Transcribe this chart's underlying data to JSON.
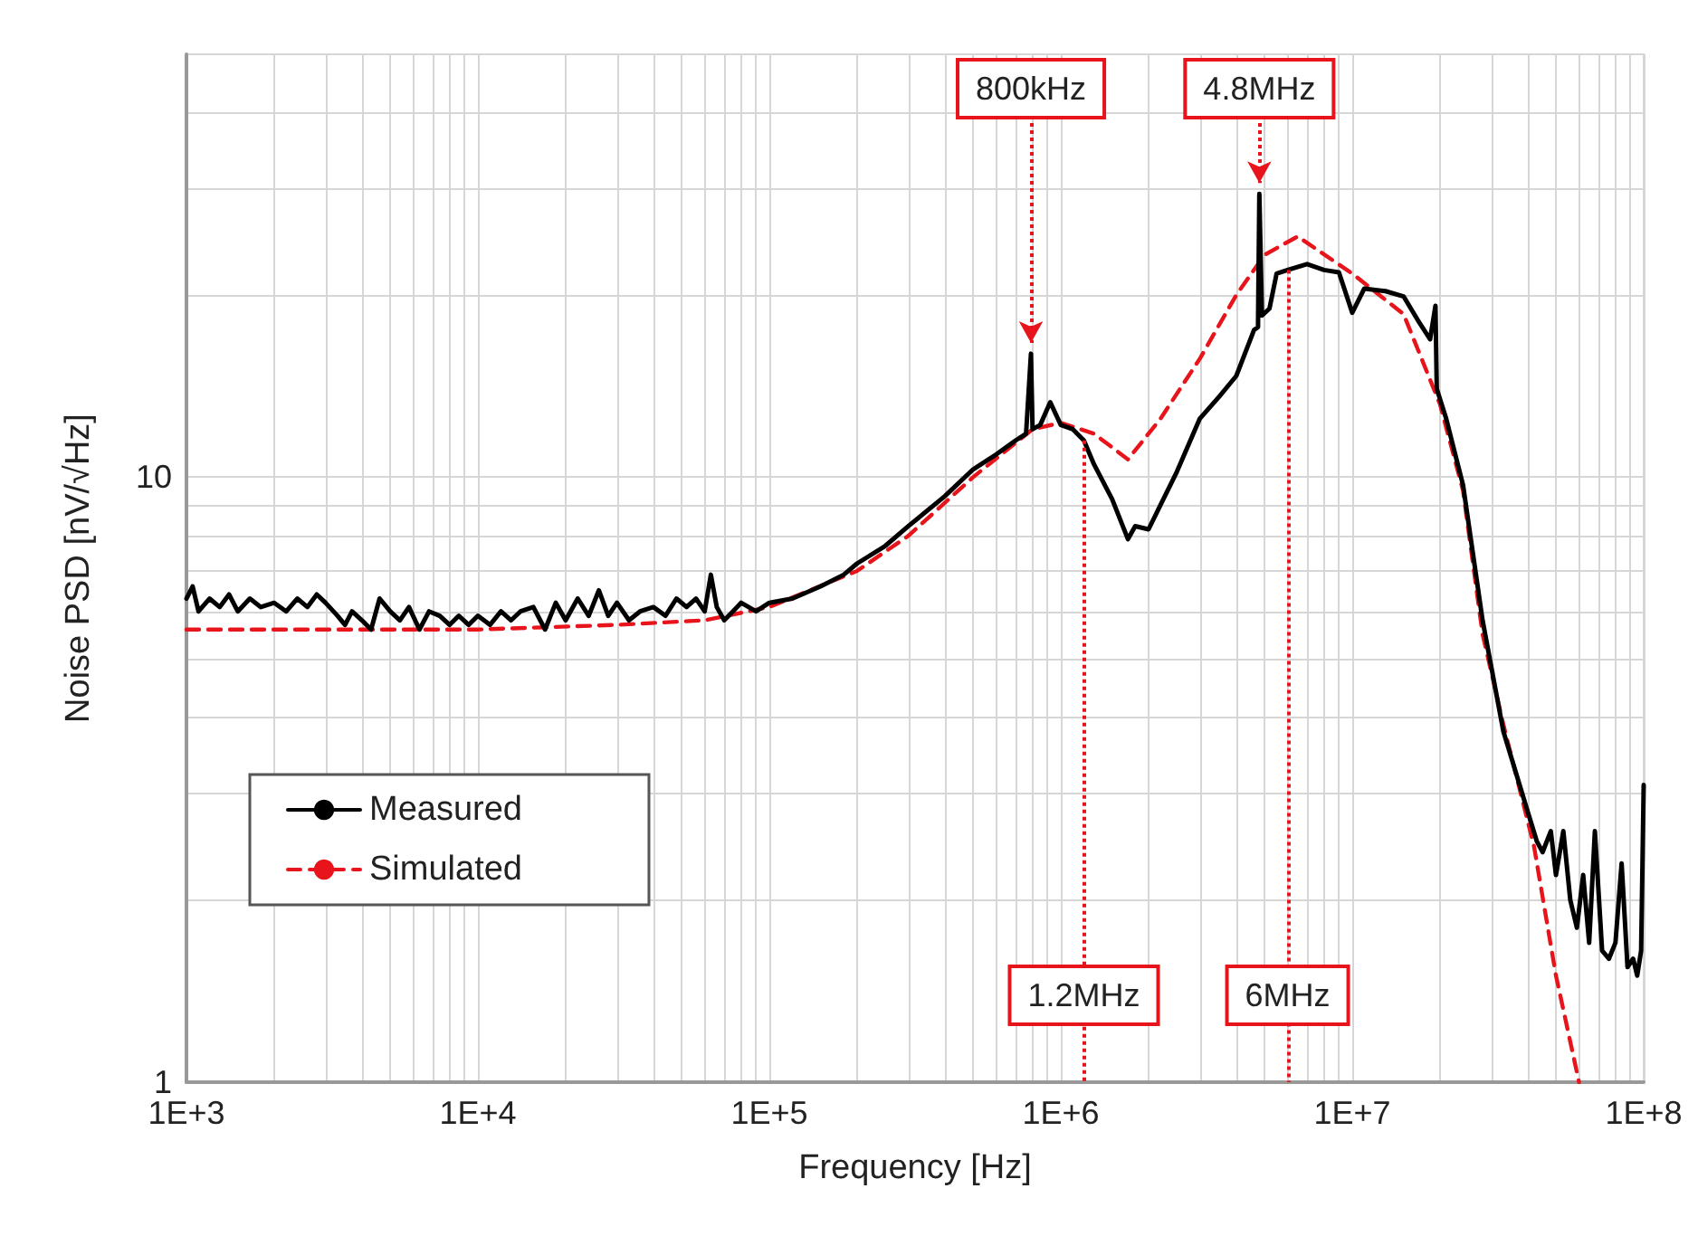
{
  "chart_data": {
    "type": "line",
    "xlabel": "Frequency [Hz]",
    "ylabel": "Noise PSD [nV/√Hz]",
    "log": "xy",
    "grid": true,
    "legend": "bottom left",
    "marker": "none",
    "xlim": [
      1000,
      100000000
    ],
    "ylim": [
      1,
      50
    ],
    "xticks": [
      {
        "value": 1000,
        "label": "1E+3"
      },
      {
        "value": 2000,
        "label": null
      },
      {
        "value": 3000,
        "label": null
      },
      {
        "value": 4000,
        "label": null
      },
      {
        "value": 5000,
        "label": null
      },
      {
        "value": 6000,
        "label": null
      },
      {
        "value": 7000,
        "label": null
      },
      {
        "value": 8000,
        "label": null
      },
      {
        "value": 9000,
        "label": null
      },
      {
        "value": 10000,
        "label": "1E+4"
      },
      {
        "value": 20000,
        "label": null
      },
      {
        "value": 30000,
        "label": null
      },
      {
        "value": 40000,
        "label": null
      },
      {
        "value": 50000,
        "label": null
      },
      {
        "value": 60000,
        "label": null
      },
      {
        "value": 70000,
        "label": null
      },
      {
        "value": 80000,
        "label": null
      },
      {
        "value": 90000,
        "label": null
      },
      {
        "value": 100000,
        "label": "1E+5"
      },
      {
        "value": 200000,
        "label": null
      },
      {
        "value": 300000,
        "label": null
      },
      {
        "value": 400000,
        "label": null
      },
      {
        "value": 500000,
        "label": null
      },
      {
        "value": 600000,
        "label": null
      },
      {
        "value": 700000,
        "label": null
      },
      {
        "value": 800000,
        "label": null
      },
      {
        "value": 900000,
        "label": null
      },
      {
        "value": 1000000,
        "label": "1E+6"
      },
      {
        "value": 2000000,
        "label": null
      },
      {
        "value": 3000000,
        "label": null
      },
      {
        "value": 4000000,
        "label": null
      },
      {
        "value": 5000000,
        "label": null
      },
      {
        "value": 6000000,
        "label": null
      },
      {
        "value": 7000000,
        "label": null
      },
      {
        "value": 8000000,
        "label": null
      },
      {
        "value": 9000000,
        "label": null
      },
      {
        "value": 10000000,
        "label": "1E+7"
      },
      {
        "value": 20000000,
        "label": null
      },
      {
        "value": 30000000,
        "label": null
      },
      {
        "value": 40000000,
        "label": null
      },
      {
        "value": 50000000,
        "label": null
      },
      {
        "value": 60000000,
        "label": null
      },
      {
        "value": 70000000,
        "label": null
      },
      {
        "value": 80000000,
        "label": null
      },
      {
        "value": 90000000,
        "label": null
      },
      {
        "value": 100000000,
        "label": "1E+8"
      }
    ],
    "yticks": [
      1,
      {
        "value": 2,
        "label": null
      },
      {
        "value": 3,
        "label": null
      },
      {
        "value": 4,
        "label": null
      },
      {
        "value": 5,
        "label": null
      },
      {
        "value": 6,
        "label": null
      },
      {
        "value": 7,
        "label": null
      },
      {
        "value": 8,
        "label": null
      },
      {
        "value": 9,
        "label": null
      },
      10,
      {
        "value": 20,
        "label": null
      },
      {
        "value": 30,
        "label": null
      },
      {
        "value": 40,
        "label": null
      }
    ],
    "series": [
      {
        "name": "Measured",
        "color": "#000000",
        "line_style": "solid",
        "x": [
          1000,
          1050,
          1100,
          1200,
          1300,
          1400,
          1500,
          1650,
          1800,
          2000,
          2200,
          2400,
          2600,
          2800,
          3000,
          3300,
          3500,
          3700,
          4000,
          4300,
          4600,
          5000,
          5400,
          5800,
          6300,
          6800,
          7400,
          8000,
          8600,
          9300,
          10000,
          11000,
          12000,
          13000,
          14000,
          15500,
          17000,
          18500,
          20000,
          22000,
          24000,
          26000,
          28000,
          30000,
          33000,
          36000,
          40000,
          44000,
          48000,
          52000,
          56000,
          60000,
          63000,
          66000,
          70000,
          75000,
          80000,
          90000,
          100000,
          120000,
          150000,
          180000,
          200000,
          250000,
          300000,
          400000,
          500000,
          600000,
          700000,
          760000,
          790000,
          800000,
          850000,
          920000,
          1000000,
          1100000,
          1200000,
          1300000,
          1500000,
          1700000,
          1800000,
          2000000,
          2200000,
          2500000,
          3000000,
          3500000,
          4000000,
          4600000,
          4750000,
          4800000,
          4900000,
          5200000,
          5500000,
          6000000,
          7000000,
          8000000,
          9000000,
          10000000,
          11000000,
          13000000,
          15000000,
          17000000,
          18500000,
          19300000,
          19500000,
          21000000,
          24000000,
          28000000,
          33000000,
          40000000,
          43000000,
          45000000,
          48000000,
          50000000,
          53000000,
          56000000,
          59000000,
          62000000,
          65000000,
          68000000,
          72000000,
          76000000,
          80000000,
          84000000,
          88000000,
          92000000,
          95000000,
          98000000,
          100000000
        ],
        "values": [
          6.3,
          6.6,
          6.0,
          6.3,
          6.1,
          6.4,
          6.0,
          6.3,
          6.1,
          6.2,
          6.0,
          6.3,
          6.1,
          6.4,
          6.2,
          5.9,
          5.7,
          6.0,
          5.8,
          5.6,
          6.3,
          6.0,
          5.8,
          6.1,
          5.6,
          6.0,
          5.9,
          5.7,
          5.9,
          5.7,
          5.9,
          5.7,
          6.0,
          5.8,
          6.0,
          6.1,
          5.6,
          6.2,
          5.8,
          6.3,
          5.9,
          6.5,
          5.9,
          6.2,
          5.8,
          6.0,
          6.1,
          5.9,
          6.3,
          6.1,
          6.3,
          6.0,
          6.9,
          6.1,
          5.8,
          6.0,
          6.2,
          6.0,
          6.2,
          6.3,
          6.6,
          6.9,
          7.2,
          7.7,
          8.3,
          9.3,
          10.3,
          10.9,
          11.5,
          11.8,
          16,
          12,
          12.2,
          13.3,
          12.2,
          12.0,
          11.5,
          10.5,
          9.2,
          7.9,
          8.3,
          8.2,
          9.0,
          10.2,
          12.5,
          13.6,
          14.7,
          17.5,
          17.7,
          29.4,
          18.5,
          19,
          21.7,
          22,
          22.5,
          22,
          21.8,
          18.7,
          20.5,
          20.3,
          19.9,
          18,
          16.9,
          19.2,
          14,
          12.5,
          9.7,
          5.8,
          3.8,
          2.8,
          2.5,
          2.4,
          2.6,
          2.2,
          2.6,
          2.0,
          1.8,
          2.2,
          1.7,
          2.6,
          1.65,
          1.6,
          1.7,
          2.3,
          1.55,
          1.6,
          1.5,
          1.65,
          3.1
        ]
      },
      {
        "name": "Simulated",
        "color": "#e8141b",
        "line_style": "dashed",
        "x": [
          1000,
          10000,
          30000,
          60000,
          100000,
          200000,
          300000,
          500000,
          800000,
          1000000,
          1300000,
          1700000,
          2200000,
          3000000,
          4000000,
          5000000,
          6500000,
          10000000,
          15000000,
          20000000,
          24000000,
          28000000,
          33000000,
          42000000,
          50000000,
          60000000
        ],
        "values": [
          5.6,
          5.6,
          5.7,
          5.8,
          6.1,
          7.0,
          8.0,
          10,
          12,
          12.3,
          11.8,
          10.7,
          12.5,
          15.7,
          20,
          23.3,
          25,
          21.7,
          18.6,
          13.2,
          9.5,
          5.5,
          3.9,
          2.46,
          1.5,
          1.0
        ]
      }
    ],
    "annotations": [
      {
        "text": "800kHz",
        "x": 790000,
        "y": 16
      },
      {
        "text": "4.8MHz",
        "x": 4800000,
        "y": 29.4
      }
    ],
    "ref_lines": [
      {
        "axis": "x",
        "value": 1200000,
        "label": "1.2MHz",
        "color": "#e8141b",
        "line_style": "dotted"
      },
      {
        "axis": "x",
        "value": 6000000,
        "label": "6MHz",
        "color": "#e8141b",
        "line_style": "dotted"
      }
    ]
  }
}
